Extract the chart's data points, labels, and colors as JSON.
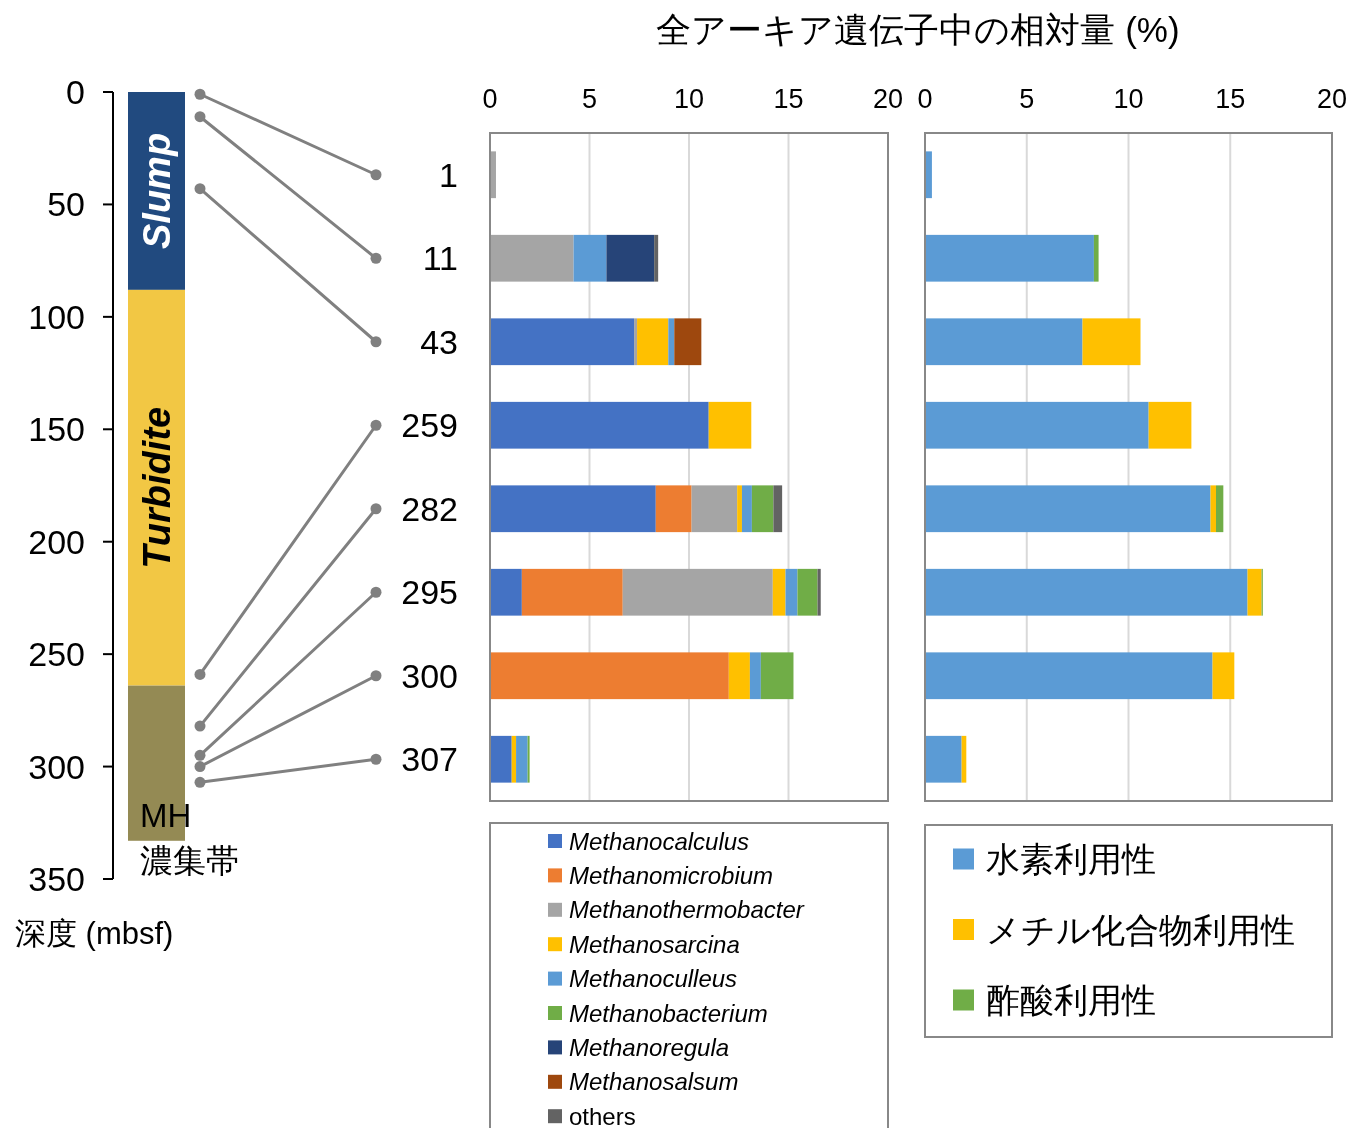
{
  "chart_data": [
    {
      "type": "bar",
      "stacked": true,
      "categories": [
        null
      ],
      "ylabel": "深度 (mbsf)",
      "ylim": [
        350,
        0
      ],
      "yticks": [
        0,
        50,
        100,
        150,
        200,
        250,
        300,
        350
      ],
      "tick_labels": "y",
      "annotations": [
        "Slump",
        "Turbidite",
        "MH濃集帯"
      ],
      "series": [
        {
          "color": "#214a7f",
          "values": [
            88
          ]
        },
        {
          "color": "#f2c744",
          "values": [
            176
          ]
        },
        {
          "color": "#948a54",
          "values": [
            69
          ]
        }
      ]
    },
    {
      "type": "bar",
      "orientation": "horizontal",
      "stacked": true,
      "title": "全アーキア遺伝子中の相対量 (%)",
      "categories": [
        "1",
        "11",
        "43",
        "259",
        "282",
        "295",
        "300",
        "307"
      ],
      "xlim": [
        0,
        20
      ],
      "xticks": [
        0,
        5,
        10,
        15,
        20
      ],
      "grid": "x",
      "legend": "bottom",
      "series": [
        {
          "name": "*Methanocalculus*",
          "color": "#4472c4",
          "values": [
            0,
            0,
            7.24,
            10.99,
            8.33,
            1.6,
            0,
            1.09
          ]
        },
        {
          "name": "*Methanomicrobium*",
          "color": "#ed7d31",
          "values": [
            0,
            0,
            0,
            0,
            1.8,
            5.07,
            12.0,
            0
          ]
        },
        {
          "name": "*Methanothermobacter*",
          "color": "#a5a5a5",
          "values": [
            0.3,
            4.2,
            0.15,
            0,
            2.29,
            7.54,
            0,
            0
          ]
        },
        {
          "name": "*Methanosarcina*",
          "color": "#ffc000",
          "values": [
            0,
            0,
            1.57,
            2.14,
            0.24,
            0.64,
            1.06,
            0.22
          ]
        },
        {
          "name": "*Methanoculleus*",
          "color": "#5b9bd5",
          "values": [
            0,
            1.65,
            0.3,
            0,
            0.5,
            0.6,
            0.55,
            0.58
          ]
        },
        {
          "name": "*Methanobacterium*",
          "color": "#70ad47",
          "values": [
            0,
            0,
            0,
            0,
            1.08,
            1.01,
            1.64,
            0.1
          ]
        },
        {
          "name": "*Methanoregula*",
          "color": "#264478",
          "values": [
            0,
            2.4,
            0,
            0,
            0,
            0,
            0,
            0
          ]
        },
        {
          "name": "*Methanosalsum*",
          "color": "#9e480e",
          "values": [
            0,
            0,
            1.36,
            0,
            0,
            0,
            0,
            0
          ]
        },
        {
          "name": "others",
          "color": "#636363",
          "values": [
            0,
            0.2,
            0,
            0,
            0.44,
            0.16,
            0,
            0
          ]
        }
      ]
    },
    {
      "type": "bar",
      "orientation": "horizontal",
      "stacked": true,
      "categories": [
        "1",
        "11",
        "43",
        "259",
        "282",
        "295",
        "300",
        "307"
      ],
      "xlim": [
        0,
        20
      ],
      "xticks": [
        0,
        5,
        10,
        15,
        20
      ],
      "grid": "x",
      "legend": "bottom",
      "tick_labels": "x",
      "series": [
        {
          "name": "水素利用性",
          "color": "#5b9bd5",
          "values": [
            0.34,
            8.3,
            7.74,
            10.99,
            14.03,
            15.85,
            14.13,
            1.8
          ]
        },
        {
          "name": "メチル化合物利用性",
          "color": "#ffc000",
          "values": [
            0,
            0,
            2.85,
            2.1,
            0.27,
            0.69,
            1.07,
            0.23
          ]
        },
        {
          "name": "酢酸利用性",
          "color": "#70ad47",
          "values": [
            0,
            0.23,
            0,
            0,
            0.36,
            0.06,
            0,
            0
          ]
        }
      ]
    }
  ]
}
